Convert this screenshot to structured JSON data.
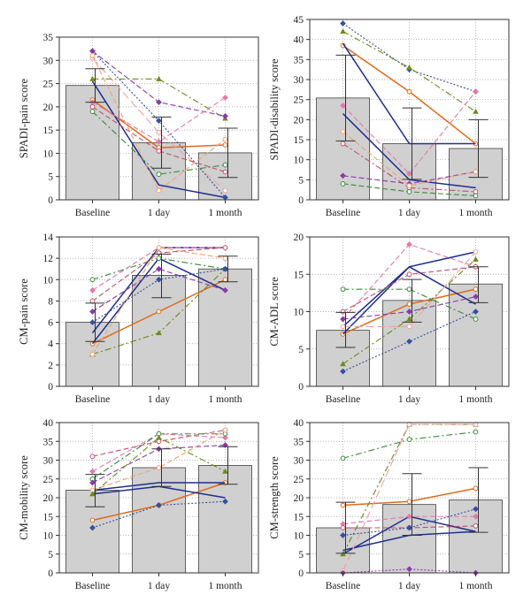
{
  "colors": {
    "bar_fill": "#d0d0d0",
    "bar_stroke": "#404040",
    "grid": "#9a9a9a",
    "mean_line": "#e06a1b",
    "primary_line": "#1f2f8c"
  },
  "chart_data": [
    {
      "type": "bar",
      "ylabel": "SPADI-pain score",
      "categories": [
        "Baseline",
        "1 day",
        "1 month"
      ],
      "ylim": [
        0,
        35
      ],
      "yticks": [
        0,
        5,
        10,
        15,
        20,
        25,
        30,
        35
      ],
      "values": [
        24.6,
        12.3,
        10.1
      ],
      "error": [
        {
          "lo": 21,
          "hi": 28.2
        },
        {
          "lo": 6.8,
          "hi": 17.8
        },
        {
          "lo": 4.8,
          "hi": 15.4
        }
      ],
      "series": [
        {
          "values": [
            21.5,
            11.2,
            11.8
          ],
          "color": "#e06a1b",
          "dash": "solid",
          "marker": "circle"
        },
        {
          "values": [
            25.5,
            3.2,
            0.5
          ],
          "color": "#1f2f8c",
          "dash": "solid",
          "marker": "none"
        },
        {
          "values": [
            30.5,
            14.5,
            2
          ],
          "color": "#f2a0a0",
          "dash": "long",
          "marker": "circle"
        },
        {
          "values": [
            32,
            17,
            0.5
          ],
          "color": "#3550a0",
          "dash": "dot",
          "marker": "diamond"
        },
        {
          "values": [
            26,
            26,
            17.5
          ],
          "color": "#6a8a1a",
          "dash": "dashdot",
          "marker": "triangle"
        },
        {
          "values": [
            32,
            21,
            18
          ],
          "color": "#8a3aa8",
          "dash": "dash",
          "marker": "diamond"
        },
        {
          "values": [
            21,
            12.5,
            22
          ],
          "color": "#e07aa8",
          "dash": "dash",
          "marker": "diamond"
        },
        {
          "values": [
            19,
            5.5,
            7.5
          ],
          "color": "#3a8a3a",
          "dash": "dashdot",
          "marker": "circle"
        },
        {
          "values": [
            20,
            10.5,
            6
          ],
          "color": "#c0506a",
          "dash": "dash",
          "marker": "circle"
        },
        {
          "values": [
            31,
            2,
            13
          ],
          "color": "#f0a070",
          "dash": "dash",
          "marker": "circle"
        }
      ]
    },
    {
      "type": "bar",
      "ylabel": "SPADI-disability score",
      "categories": [
        "Baseline",
        "1 day",
        "1 month"
      ],
      "ylim": [
        0,
        45
      ],
      "yticks": [
        0,
        5,
        10,
        15,
        20,
        25,
        30,
        35,
        40,
        45
      ],
      "values": [
        25.4,
        14,
        12.8
      ],
      "error": [
        {
          "lo": 14.7,
          "hi": 36.1
        },
        {
          "lo": 5.1,
          "hi": 22.9
        },
        {
          "lo": 5.6,
          "hi": 20
        }
      ],
      "series": [
        {
          "values": [
            38.5,
            27,
            14
          ],
          "color": "#e06a1b",
          "dash": "solid",
          "marker": "circle"
        },
        {
          "values": [
            39,
            14,
            14
          ],
          "color": "#1f2f8c",
          "dash": "solid",
          "marker": "none"
        },
        {
          "values": [
            21.5,
            5,
            3
          ],
          "color": "#1f2f8c",
          "dash": "solid",
          "marker": "none"
        },
        {
          "values": [
            44,
            32.5,
            27
          ],
          "color": "#3550a0",
          "dash": "dot",
          "marker": "diamond"
        },
        {
          "values": [
            42,
            33,
            22
          ],
          "color": "#6a8a1a",
          "dash": "dashdot",
          "marker": "triangle"
        },
        {
          "values": [
            23.5,
            6.5,
            27
          ],
          "color": "#e07aa8",
          "dash": "dash",
          "marker": "diamond"
        },
        {
          "values": [
            14,
            3,
            2
          ],
          "color": "#c0506a",
          "dash": "dashdot",
          "marker": "circle"
        },
        {
          "values": [
            4,
            2,
            1
          ],
          "color": "#3a8a3a",
          "dash": "dash",
          "marker": "circle"
        },
        {
          "values": [
            6,
            4,
            7
          ],
          "color": "#8a3aa8",
          "dash": "dash",
          "marker": "diamond"
        },
        {
          "values": [
            17,
            3.5,
            7
          ],
          "color": "#f0a070",
          "dash": "dash",
          "marker": "circle"
        }
      ]
    },
    {
      "type": "bar",
      "ylabel": "CM-pain score",
      "categories": [
        "Baseline",
        "1 day",
        "1 month"
      ],
      "ylim": [
        0,
        14
      ],
      "yticks": [
        0,
        2,
        4,
        6,
        8,
        10,
        12,
        14
      ],
      "values": [
        6,
        10.4,
        11
      ],
      "error": [
        {
          "lo": 4.2,
          "hi": 7.8
        },
        {
          "lo": 8.3,
          "hi": 12.4
        },
        {
          "lo": 9.8,
          "hi": 12.2
        }
      ],
      "series": [
        {
          "values": [
            4,
            7,
            10
          ],
          "color": "#e06a1b",
          "dash": "solid",
          "marker": "circle"
        },
        {
          "values": [
            4,
            12,
            9
          ],
          "color": "#1f2f8c",
          "dash": "solid",
          "marker": "none"
        },
        {
          "values": [
            5,
            13,
            13
          ],
          "color": "#1f2f8c",
          "dash": "solid",
          "marker": "none"
        },
        {
          "values": [
            10,
            12,
            11
          ],
          "color": "#3a8a3a",
          "dash": "dashdot",
          "marker": "circle"
        },
        {
          "values": [
            3,
            5,
            11
          ],
          "color": "#6a8a1a",
          "dash": "dashdot",
          "marker": "triangle"
        },
        {
          "values": [
            9,
            13,
            13
          ],
          "color": "#e07aa8",
          "dash": "dash",
          "marker": "diamond"
        },
        {
          "values": [
            7,
            11,
            9
          ],
          "color": "#8a3aa8",
          "dash": "dash",
          "marker": "diamond"
        },
        {
          "values": [
            8,
            12.5,
            13
          ],
          "color": "#c0506a",
          "dash": "dash",
          "marker": "circle"
        },
        {
          "values": [
            3,
            13,
            12
          ],
          "color": "#f0a070",
          "dash": "dash",
          "marker": "circle"
        },
        {
          "values": [
            6,
            10,
            11
          ],
          "color": "#3550a0",
          "dash": "dot",
          "marker": "diamond"
        }
      ]
    },
    {
      "type": "bar",
      "ylabel": "CM-ADL score",
      "categories": [
        "Baseline",
        "1 day",
        "1 month"
      ],
      "ylim": [
        0,
        20
      ],
      "yticks": [
        0,
        5,
        10,
        15,
        20
      ],
      "values": [
        7.5,
        11.5,
        13.7
      ],
      "error": [
        {
          "lo": 5.2,
          "hi": 9.9
        },
        {
          "lo": 8.6,
          "hi": 14.3
        },
        {
          "lo": 11.2,
          "hi": 16
        }
      ],
      "series": [
        {
          "values": [
            7,
            11,
            13
          ],
          "color": "#e06a1b",
          "dash": "solid",
          "marker": "circle"
        },
        {
          "values": [
            7,
            16,
            18
          ],
          "color": "#1f2f8c",
          "dash": "solid",
          "marker": "none"
        },
        {
          "values": [
            8,
            16,
            11
          ],
          "color": "#1f2f8c",
          "dash": "solid",
          "marker": "none"
        },
        {
          "values": [
            13,
            13,
            9
          ],
          "color": "#3a8a3a",
          "dash": "dashdot",
          "marker": "circle"
        },
        {
          "values": [
            3,
            9,
            17
          ],
          "color": "#6a8a1a",
          "dash": "dashdot",
          "marker": "triangle"
        },
        {
          "values": [
            9,
            19,
            16
          ],
          "color": "#e07aa8",
          "dash": "dash",
          "marker": "diamond"
        },
        {
          "values": [
            2,
            6,
            10
          ],
          "color": "#3550a0",
          "dash": "dot",
          "marker": "diamond"
        },
        {
          "values": [
            10,
            15,
            16
          ],
          "color": "#c0506a",
          "dash": "dash",
          "marker": "circle"
        },
        {
          "values": [
            8,
            8,
            18
          ],
          "color": "#f2a0a0",
          "dash": "long",
          "marker": "circle"
        },
        {
          "values": [
            9,
            10,
            12
          ],
          "color": "#8a3aa8",
          "dash": "dash",
          "marker": "diamond"
        }
      ]
    },
    {
      "type": "bar",
      "ylabel": "CM-mobility score",
      "categories": [
        "Baseline",
        "1 day",
        "1 month"
      ],
      "ylim": [
        0,
        40
      ],
      "yticks": [
        0,
        5,
        10,
        15,
        20,
        25,
        30,
        35,
        40
      ],
      "values": [
        22,
        28,
        28.6
      ],
      "error": [
        {
          "lo": 17.6,
          "hi": 26.2
        },
        {
          "lo": 23,
          "hi": 33
        },
        {
          "lo": 23.6,
          "hi": 33.6
        }
      ],
      "series": [
        {
          "values": [
            14,
            18,
            24
          ],
          "color": "#e06a1b",
          "dash": "solid",
          "marker": "circle"
        },
        {
          "values": [
            22,
            24,
            24
          ],
          "color": "#1f2f8c",
          "dash": "solid",
          "marker": "none"
        },
        {
          "values": [
            21,
            23,
            20
          ],
          "color": "#1f2f8c",
          "dash": "solid",
          "marker": "none"
        },
        {
          "values": [
            12,
            18,
            19
          ],
          "color": "#3550a0",
          "dash": "dot",
          "marker": "diamond"
        },
        {
          "values": [
            31,
            35,
            38
          ],
          "color": "#c0506a",
          "dash": "dash",
          "marker": "circle"
        },
        {
          "values": [
            27,
            37,
            36
          ],
          "color": "#e07aa8",
          "dash": "dash",
          "marker": "diamond"
        },
        {
          "values": [
            25,
            37,
            37
          ],
          "color": "#3a8a3a",
          "dash": "dashdot",
          "marker": "circle"
        },
        {
          "values": [
            24,
            33,
            34
          ],
          "color": "#8a3aa8",
          "dash": "dash",
          "marker": "diamond"
        },
        {
          "values": [
            22,
            28,
            38
          ],
          "color": "#f0a070",
          "dash": "dash",
          "marker": "circle"
        },
        {
          "values": [
            21,
            36,
            27
          ],
          "color": "#6a8a1a",
          "dash": "dashdot",
          "marker": "triangle"
        }
      ]
    },
    {
      "type": "bar",
      "ylabel": "CM-strength score",
      "categories": [
        "Baseline",
        "1 day",
        "1 month"
      ],
      "ylim": [
        0,
        40
      ],
      "yticks": [
        0,
        5,
        10,
        15,
        20,
        25,
        30,
        35,
        40
      ],
      "values": [
        12,
        18.2,
        19.4
      ],
      "error": [
        {
          "lo": 5.2,
          "hi": 18.8
        },
        {
          "lo": 10,
          "hi": 26.4
        },
        {
          "lo": 10.8,
          "hi": 28
        }
      ],
      "series": [
        {
          "values": [
            18,
            19,
            22.5
          ],
          "color": "#e06a1b",
          "dash": "solid",
          "marker": "circle"
        },
        {
          "values": [
            5,
            15,
            11
          ],
          "color": "#1f2f8c",
          "dash": "solid",
          "marker": "none"
        },
        {
          "values": [
            6,
            10,
            11
          ],
          "color": "#1f2f8c",
          "dash": "solid",
          "marker": "none"
        },
        {
          "values": [
            30.5,
            35.5,
            37.5
          ],
          "color": "#3a8a3a",
          "dash": "dashdot",
          "marker": "circle"
        },
        {
          "values": [
            5,
            39.5,
            39.5
          ],
          "color": "#6a8a1a",
          "dash": "dashdot",
          "marker": "triangle"
        },
        {
          "values": [
            0.5,
            39.5,
            39.5
          ],
          "color": "#f2a0a0",
          "dash": "long",
          "marker": "circle"
        },
        {
          "values": [
            13,
            15,
            15
          ],
          "color": "#e07aa8",
          "dash": "dash",
          "marker": "diamond"
        },
        {
          "values": [
            0,
            1,
            0
          ],
          "color": "#8a3aa8",
          "dash": "dot",
          "marker": "diamond"
        },
        {
          "values": [
            12,
            12,
            12.5
          ],
          "color": "#c0506a",
          "dash": "dash",
          "marker": "circle"
        },
        {
          "values": [
            10,
            12,
            17
          ],
          "color": "#3550a0",
          "dash": "dot",
          "marker": "diamond"
        }
      ]
    }
  ]
}
